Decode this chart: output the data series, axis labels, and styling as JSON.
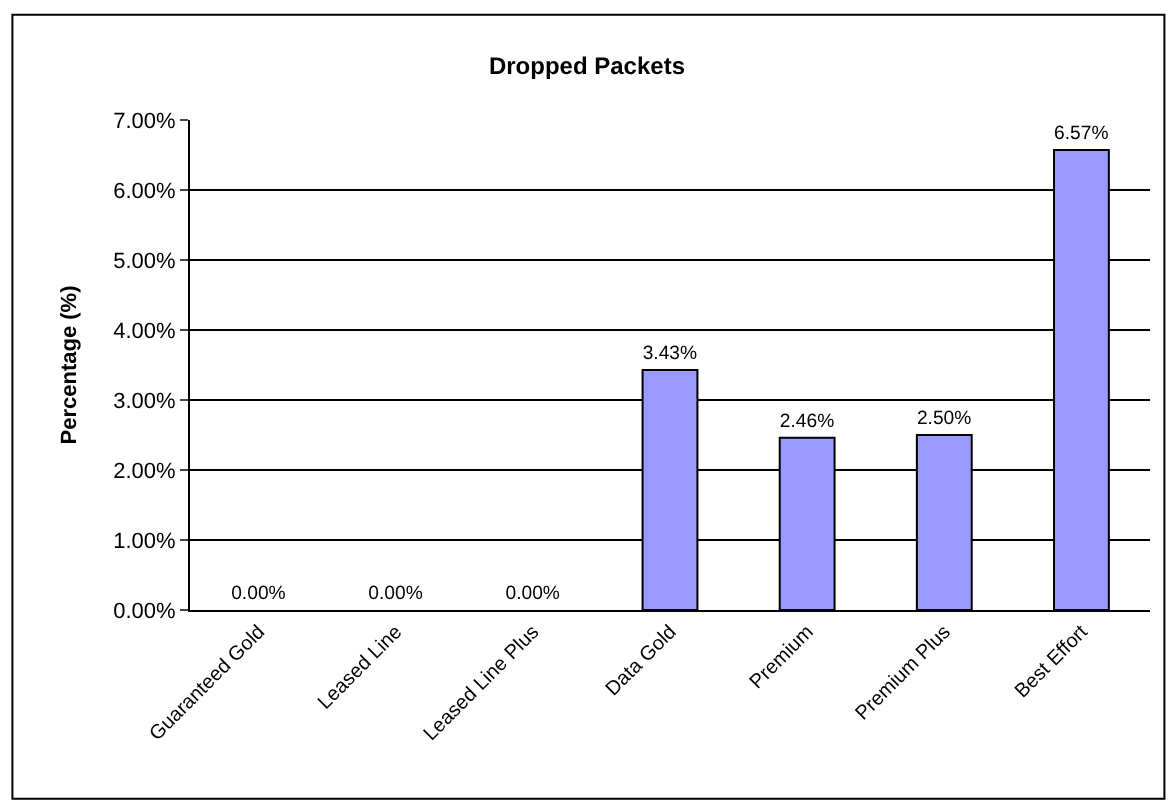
{
  "chart_data": {
    "type": "bar",
    "title": "Dropped Packets",
    "ylabel": "Percentage (%)",
    "categories": [
      "Guaranteed Gold",
      "Leased Line",
      "Leased Line Plus",
      "Data Gold",
      "Premium",
      "Premium Plus",
      "Best Effort"
    ],
    "values": [
      0,
      0,
      0,
      3.43,
      2.46,
      2.5,
      6.57
    ],
    "value_labels": [
      "0.00%",
      "0.00%",
      "0.00%",
      "3.43%",
      "2.46%",
      "2.50%",
      "6.57%"
    ],
    "color": "#9999ff",
    "ylim": [
      0,
      7
    ],
    "yticks": [
      {
        "value": 0,
        "label": "0.00%"
      },
      {
        "value": 1,
        "label": "1.00%"
      },
      {
        "value": 2,
        "label": "2.00%"
      },
      {
        "value": 3,
        "label": "3.00%"
      },
      {
        "value": 4,
        "label": "4.00%"
      },
      {
        "value": 5,
        "label": "5.00%"
      },
      {
        "value": 6,
        "label": "6.00%"
      },
      {
        "value": 7,
        "label": "7.00%"
      }
    ],
    "grid": "y",
    "legend": false
  }
}
